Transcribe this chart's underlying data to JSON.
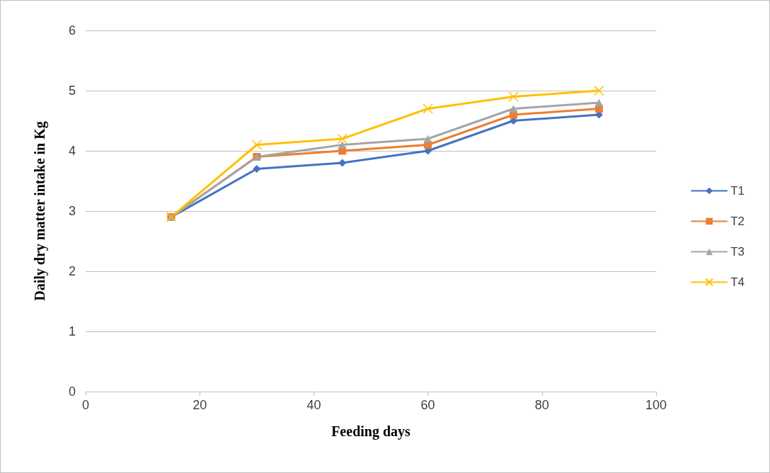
{
  "chart_data": {
    "type": "line",
    "xlabel": "Feeding days",
    "ylabel": "Daily dry matter intake in Kg",
    "x": [
      15,
      30,
      45,
      60,
      75,
      90
    ],
    "series": [
      {
        "name": "T1",
        "color": "#4472c4",
        "marker": "diamond",
        "values": [
          2.9,
          3.7,
          3.8,
          4.0,
          4.5,
          4.6
        ]
      },
      {
        "name": "T2",
        "color": "#ed7d31",
        "marker": "square",
        "values": [
          2.9,
          3.9,
          4.0,
          4.1,
          4.6,
          4.7
        ]
      },
      {
        "name": "T3",
        "color": "#a5a5a5",
        "marker": "triangle",
        "values": [
          2.9,
          3.9,
          4.1,
          4.2,
          4.7,
          4.8
        ]
      },
      {
        "name": "T4",
        "color": "#ffc000",
        "marker": "cross",
        "values": [
          2.9,
          4.1,
          4.2,
          4.7,
          4.9,
          5.0
        ]
      }
    ],
    "xlim": [
      0,
      100
    ],
    "xticks": [
      0,
      20,
      40,
      60,
      80,
      100
    ],
    "ylim": [
      0,
      6
    ],
    "yticks": [
      0,
      1,
      2,
      3,
      4,
      5,
      6
    ],
    "grid": "y",
    "legend": "right",
    "line_style": "solid"
  }
}
